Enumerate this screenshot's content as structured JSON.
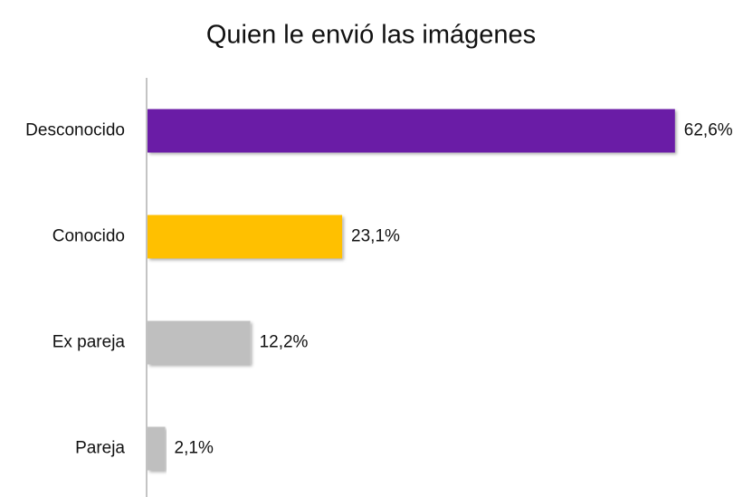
{
  "chart_data": {
    "type": "bar",
    "orientation": "horizontal",
    "title": "Quien le envió las imágenes",
    "categories": [
      "Desconocido",
      "Conocido",
      "Ex pareja",
      "Pareja"
    ],
    "values": [
      62.6,
      23.1,
      12.2,
      2.1
    ],
    "value_labels": [
      "62,6%",
      "23,1%",
      "12,2%",
      "2,1%"
    ],
    "colors": [
      "#6a1fa6",
      "#ffc000",
      "#bfbfbf",
      "#bfbfbf"
    ]
  }
}
